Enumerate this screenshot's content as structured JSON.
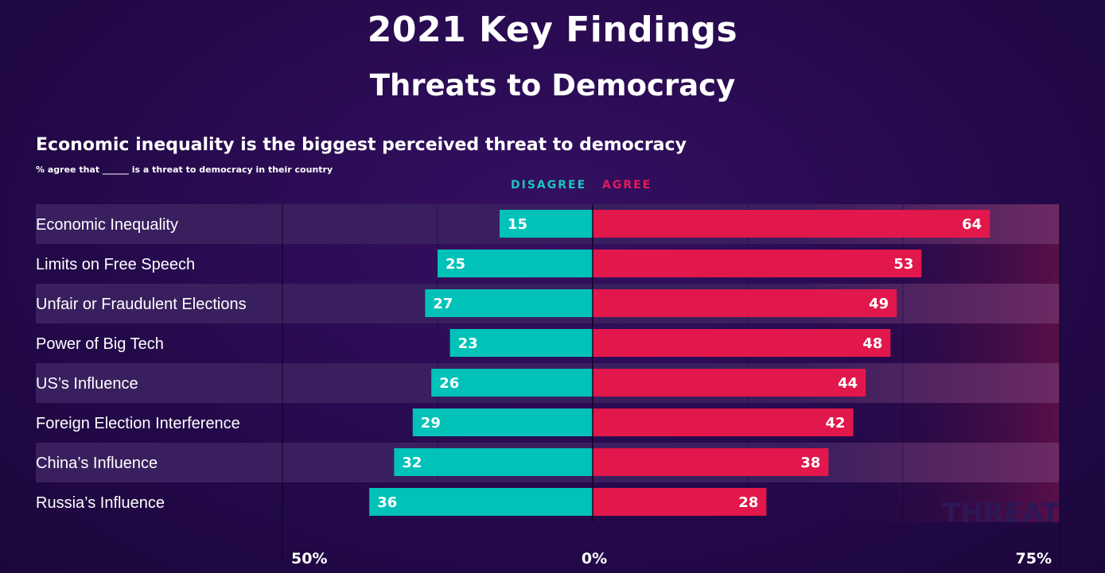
{
  "header": {
    "title": "2021 Key Findings",
    "subtitle": "Threats to Democracy"
  },
  "chart_data": {
    "type": "bar",
    "title": "Economic inequality is the biggest perceived threat to democracy",
    "note": "% agree that ______ is a threat to democracy in their country",
    "legend": {
      "disagree": "DISAGREE",
      "agree": "AGREE",
      "placement": "top-center"
    },
    "categories": [
      "Economic Inequality",
      "Limits on Free Speech",
      "Unfair or Fraudulent Elections",
      "Power of Big Tech",
      "US’s Influence",
      "Foreign Election Interference",
      "China’s Influence",
      "Russia’s Influence"
    ],
    "series": [
      {
        "name": "DISAGREE",
        "color": "#00c2b8",
        "values": [
          15,
          25,
          27,
          23,
          26,
          29,
          32,
          36
        ]
      },
      {
        "name": "AGREE",
        "color": "#e2174b",
        "values": [
          64,
          53,
          49,
          48,
          44,
          42,
          38,
          28
        ]
      }
    ],
    "axis": {
      "left_label": "50%",
      "center_label": "0%",
      "right_label": "75%",
      "xlim_disagree": [
        0,
        50
      ],
      "xlim_agree": [
        0,
        75
      ]
    },
    "watermark": "THREAT"
  }
}
